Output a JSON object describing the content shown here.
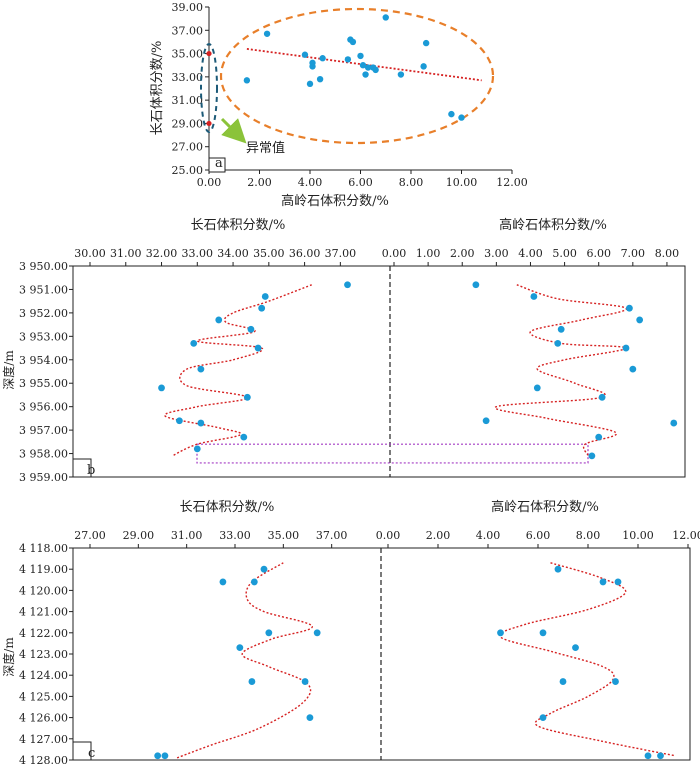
{
  "chart_data": [
    {
      "type": "scatter",
      "panel": "a",
      "xlabel": "高岭石体积分数/%",
      "ylabel": "长石体积分数/%",
      "xlim": [
        0,
        12
      ],
      "ylim": [
        25,
        39
      ],
      "x_ticks": [
        "0.00",
        "2.00",
        "4.00",
        "6.00",
        "8.00",
        "10.00",
        "12.00"
      ],
      "y_ticks": [
        "25.00",
        "27.00",
        "29.00",
        "31.00",
        "33.00",
        "35.00",
        "37.00",
        "39.00"
      ],
      "points": [
        {
          "x": 1.5,
          "y": 32.7
        },
        {
          "x": 2.3,
          "y": 36.7
        },
        {
          "x": 3.8,
          "y": 34.9
        },
        {
          "x": 4.0,
          "y": 32.4
        },
        {
          "x": 4.1,
          "y": 34.2
        },
        {
          "x": 4.1,
          "y": 33.9
        },
        {
          "x": 4.4,
          "y": 32.8
        },
        {
          "x": 4.5,
          "y": 34.6
        },
        {
          "x": 5.5,
          "y": 34.5
        },
        {
          "x": 5.6,
          "y": 36.2
        },
        {
          "x": 5.7,
          "y": 36.0
        },
        {
          "x": 6.0,
          "y": 34.8
        },
        {
          "x": 6.1,
          "y": 34.0
        },
        {
          "x": 6.2,
          "y": 33.2
        },
        {
          "x": 6.3,
          "y": 33.8
        },
        {
          "x": 6.5,
          "y": 33.8
        },
        {
          "x": 6.6,
          "y": 33.6
        },
        {
          "x": 7.0,
          "y": 38.1
        },
        {
          "x": 7.6,
          "y": 33.2
        },
        {
          "x": 8.5,
          "y": 33.9
        },
        {
          "x": 8.6,
          "y": 35.9
        },
        {
          "x": 9.6,
          "y": 29.8
        },
        {
          "x": 10.0,
          "y": 29.5
        }
      ],
      "anomaly_points": [
        {
          "x": 0.0,
          "y": 35.0
        },
        {
          "x": 0.0,
          "y": 29.0
        }
      ],
      "trendline": {
        "x": [
          1.5,
          10.8
        ],
        "y": [
          35.4,
          32.7
        ]
      },
      "annotation": "异常值",
      "panel_label": "a"
    },
    {
      "type": "line",
      "panel": "b",
      "ylabel": "深度/m",
      "left_title": "长石体积分数/%",
      "right_title": "高岭石体积分数/%",
      "ylim": [
        3950,
        3959
      ],
      "y_ticks": [
        "3 950.00",
        "3 951.00",
        "3 952.00",
        "3 953.00",
        "3 954.00",
        "3 955.00",
        "3 956.00",
        "3 957.00",
        "3 958.00",
        "3 959.00"
      ],
      "left_xlim": [
        30,
        38.5
      ],
      "left_ticks": [
        "30.00",
        "31.00",
        "32.00",
        "33.00",
        "34.00",
        "35.00",
        "36.00",
        "37.00"
      ],
      "right_xlim": [
        0,
        8.5
      ],
      "right_ticks": [
        "0.00",
        "1.00",
        "2.00",
        "3.00",
        "4.00",
        "5.00",
        "6.00",
        "7.00",
        "8.00"
      ],
      "feldspar": [
        {
          "depth": 3950.8,
          "value": 37.2
        },
        {
          "depth": 3951.3,
          "value": 34.9
        },
        {
          "depth": 3951.8,
          "value": 34.8
        },
        {
          "depth": 3952.3,
          "value": 33.6
        },
        {
          "depth": 3952.7,
          "value": 34.5
        },
        {
          "depth": 3953.3,
          "value": 32.9
        },
        {
          "depth": 3953.5,
          "value": 34.7
        },
        {
          "depth": 3954.4,
          "value": 33.1
        },
        {
          "depth": 3955.2,
          "value": 32.0
        },
        {
          "depth": 3955.6,
          "value": 34.4
        },
        {
          "depth": 3956.6,
          "value": 32.5
        },
        {
          "depth": 3956.7,
          "value": 33.1
        },
        {
          "depth": 3957.3,
          "value": 34.3
        },
        {
          "depth": 3957.8,
          "value": 33.0
        }
      ],
      "kaolinite": [
        {
          "depth": 3950.8,
          "value": 2.4
        },
        {
          "depth": 3951.3,
          "value": 4.1
        },
        {
          "depth": 3951.8,
          "value": 6.9
        },
        {
          "depth": 3952.3,
          "value": 7.2
        },
        {
          "depth": 3952.7,
          "value": 4.9
        },
        {
          "depth": 3953.3,
          "value": 4.8
        },
        {
          "depth": 3953.5,
          "value": 6.8
        },
        {
          "depth": 3954.4,
          "value": 7.0
        },
        {
          "depth": 3955.2,
          "value": 4.2
        },
        {
          "depth": 3955.6,
          "value": 6.1
        },
        {
          "depth": 3956.6,
          "value": 2.7
        },
        {
          "depth": 3956.7,
          "value": 8.2
        },
        {
          "depth": 3957.3,
          "value": 6.0
        },
        {
          "depth": 3958.1,
          "value": 5.8
        }
      ],
      "feldspar_curve": [
        {
          "depth": 3950.8,
          "value": 36.2
        },
        {
          "depth": 3951.5,
          "value": 35.0
        },
        {
          "depth": 3952.0,
          "value": 34.0
        },
        {
          "depth": 3952.4,
          "value": 33.8
        },
        {
          "depth": 3952.8,
          "value": 34.6
        },
        {
          "depth": 3953.2,
          "value": 33.0
        },
        {
          "depth": 3953.5,
          "value": 34.8
        },
        {
          "depth": 3954.0,
          "value": 34.0
        },
        {
          "depth": 3954.4,
          "value": 32.7
        },
        {
          "depth": 3955.1,
          "value": 32.7
        },
        {
          "depth": 3955.6,
          "value": 34.4
        },
        {
          "depth": 3956.0,
          "value": 33.0
        },
        {
          "depth": 3956.4,
          "value": 32.1
        },
        {
          "depth": 3956.9,
          "value": 33.6
        },
        {
          "depth": 3957.2,
          "value": 34.2
        },
        {
          "depth": 3957.6,
          "value": 33.0
        },
        {
          "depth": 3958.1,
          "value": 32.3
        }
      ],
      "kaolinite_curve": [
        {
          "depth": 3950.8,
          "value": 3.6
        },
        {
          "depth": 3951.4,
          "value": 4.8
        },
        {
          "depth": 3951.8,
          "value": 6.8
        },
        {
          "depth": 3952.3,
          "value": 5.5
        },
        {
          "depth": 3952.8,
          "value": 4.0
        },
        {
          "depth": 3953.3,
          "value": 4.9
        },
        {
          "depth": 3953.5,
          "value": 6.8
        },
        {
          "depth": 3954.0,
          "value": 5.0
        },
        {
          "depth": 3954.4,
          "value": 4.2
        },
        {
          "depth": 3955.0,
          "value": 5.3
        },
        {
          "depth": 3955.6,
          "value": 6.1
        },
        {
          "depth": 3956.0,
          "value": 3.0
        },
        {
          "depth": 3956.5,
          "value": 4.5
        },
        {
          "depth": 3957.1,
          "value": 6.5
        },
        {
          "depth": 3957.6,
          "value": 5.6
        },
        {
          "depth": 3958.1,
          "value": 5.7
        }
      ],
      "highlight_box": {
        "depth_top": 3957.6,
        "depth_bottom": 3958.4
      },
      "panel_label": "b"
    },
    {
      "type": "line",
      "panel": "c",
      "ylabel": "深度/m",
      "left_title": "长石体积分数/%",
      "right_title": "高岭石体积分数/%",
      "ylim": [
        4118,
        4128
      ],
      "y_ticks": [
        "4 118.00",
        "4 119.00",
        "4 120.00",
        "4 121.00",
        "4 122.00",
        "4 123.00",
        "4 124.00",
        "4 125.00",
        "4 126.00",
        "4 127.00",
        "4 128.00"
      ],
      "left_xlim": [
        27,
        39
      ],
      "left_ticks": [
        "27.00",
        "29.00",
        "31.00",
        "33.00",
        "35.00",
        "37.00"
      ],
      "right_xlim": [
        0,
        12
      ],
      "right_ticks": [
        "0.00",
        "2.00",
        "4.00",
        "6.00",
        "8.00",
        "10.00",
        "12.00"
      ],
      "feldspar": [
        {
          "depth": 4119.0,
          "value": 34.2
        },
        {
          "depth": 4119.6,
          "value": 32.5
        },
        {
          "depth": 4119.6,
          "value": 33.8
        },
        {
          "depth": 4122.0,
          "value": 34.4
        },
        {
          "depth": 4122.0,
          "value": 36.4
        },
        {
          "depth": 4122.7,
          "value": 33.2
        },
        {
          "depth": 4124.3,
          "value": 33.7
        },
        {
          "depth": 4124.3,
          "value": 35.9
        },
        {
          "depth": 4126.0,
          "value": 36.1
        },
        {
          "depth": 4127.8,
          "value": 29.8
        },
        {
          "depth": 4127.8,
          "value": 30.1
        }
      ],
      "kaolinite": [
        {
          "depth": 4119.0,
          "value": 6.8
        },
        {
          "depth": 4119.6,
          "value": 8.6
        },
        {
          "depth": 4119.6,
          "value": 9.2
        },
        {
          "depth": 4122.0,
          "value": 4.5
        },
        {
          "depth": 4122.0,
          "value": 6.2
        },
        {
          "depth": 4122.7,
          "value": 7.5
        },
        {
          "depth": 4124.3,
          "value": 7.0
        },
        {
          "depth": 4124.3,
          "value": 9.1
        },
        {
          "depth": 4126.0,
          "value": 6.2
        },
        {
          "depth": 4127.8,
          "value": 10.4
        },
        {
          "depth": 4127.8,
          "value": 10.9
        }
      ],
      "feldspar_curve": [
        {
          "depth": 4118.7,
          "value": 35.0
        },
        {
          "depth": 4119.6,
          "value": 33.7
        },
        {
          "depth": 4120.4,
          "value": 33.5
        },
        {
          "depth": 4121.0,
          "value": 34.2
        },
        {
          "depth": 4121.7,
          "value": 36.2
        },
        {
          "depth": 4122.3,
          "value": 34.5
        },
        {
          "depth": 4123.0,
          "value": 33.3
        },
        {
          "depth": 4123.6,
          "value": 34.4
        },
        {
          "depth": 4124.4,
          "value": 36.0
        },
        {
          "depth": 4125.3,
          "value": 35.8
        },
        {
          "depth": 4126.5,
          "value": 34.0
        },
        {
          "depth": 4127.3,
          "value": 32.0
        },
        {
          "depth": 4127.9,
          "value": 30.6
        }
      ],
      "kaolinite_curve": [
        {
          "depth": 4118.7,
          "value": 6.5
        },
        {
          "depth": 4119.4,
          "value": 8.5
        },
        {
          "depth": 4120.1,
          "value": 9.5
        },
        {
          "depth": 4120.9,
          "value": 8.0
        },
        {
          "depth": 4121.6,
          "value": 5.5
        },
        {
          "depth": 4122.2,
          "value": 4.5
        },
        {
          "depth": 4122.9,
          "value": 6.6
        },
        {
          "depth": 4123.6,
          "value": 8.6
        },
        {
          "depth": 4124.2,
          "value": 9.0
        },
        {
          "depth": 4125.0,
          "value": 8.0
        },
        {
          "depth": 4125.8,
          "value": 6.5
        },
        {
          "depth": 4126.4,
          "value": 6.0
        },
        {
          "depth": 4127.1,
          "value": 8.5
        },
        {
          "depth": 4127.8,
          "value": 11.5
        }
      ],
      "panel_label": "c"
    }
  ],
  "colors": {
    "point": "#1a9ad6",
    "trend": "#d62222",
    "ellipse_orange": "#e87f2a",
    "ellipse_blue": "#1c5a78",
    "arrow": "#8bc33a",
    "box": "#a43bc4",
    "axis": "#222222"
  }
}
